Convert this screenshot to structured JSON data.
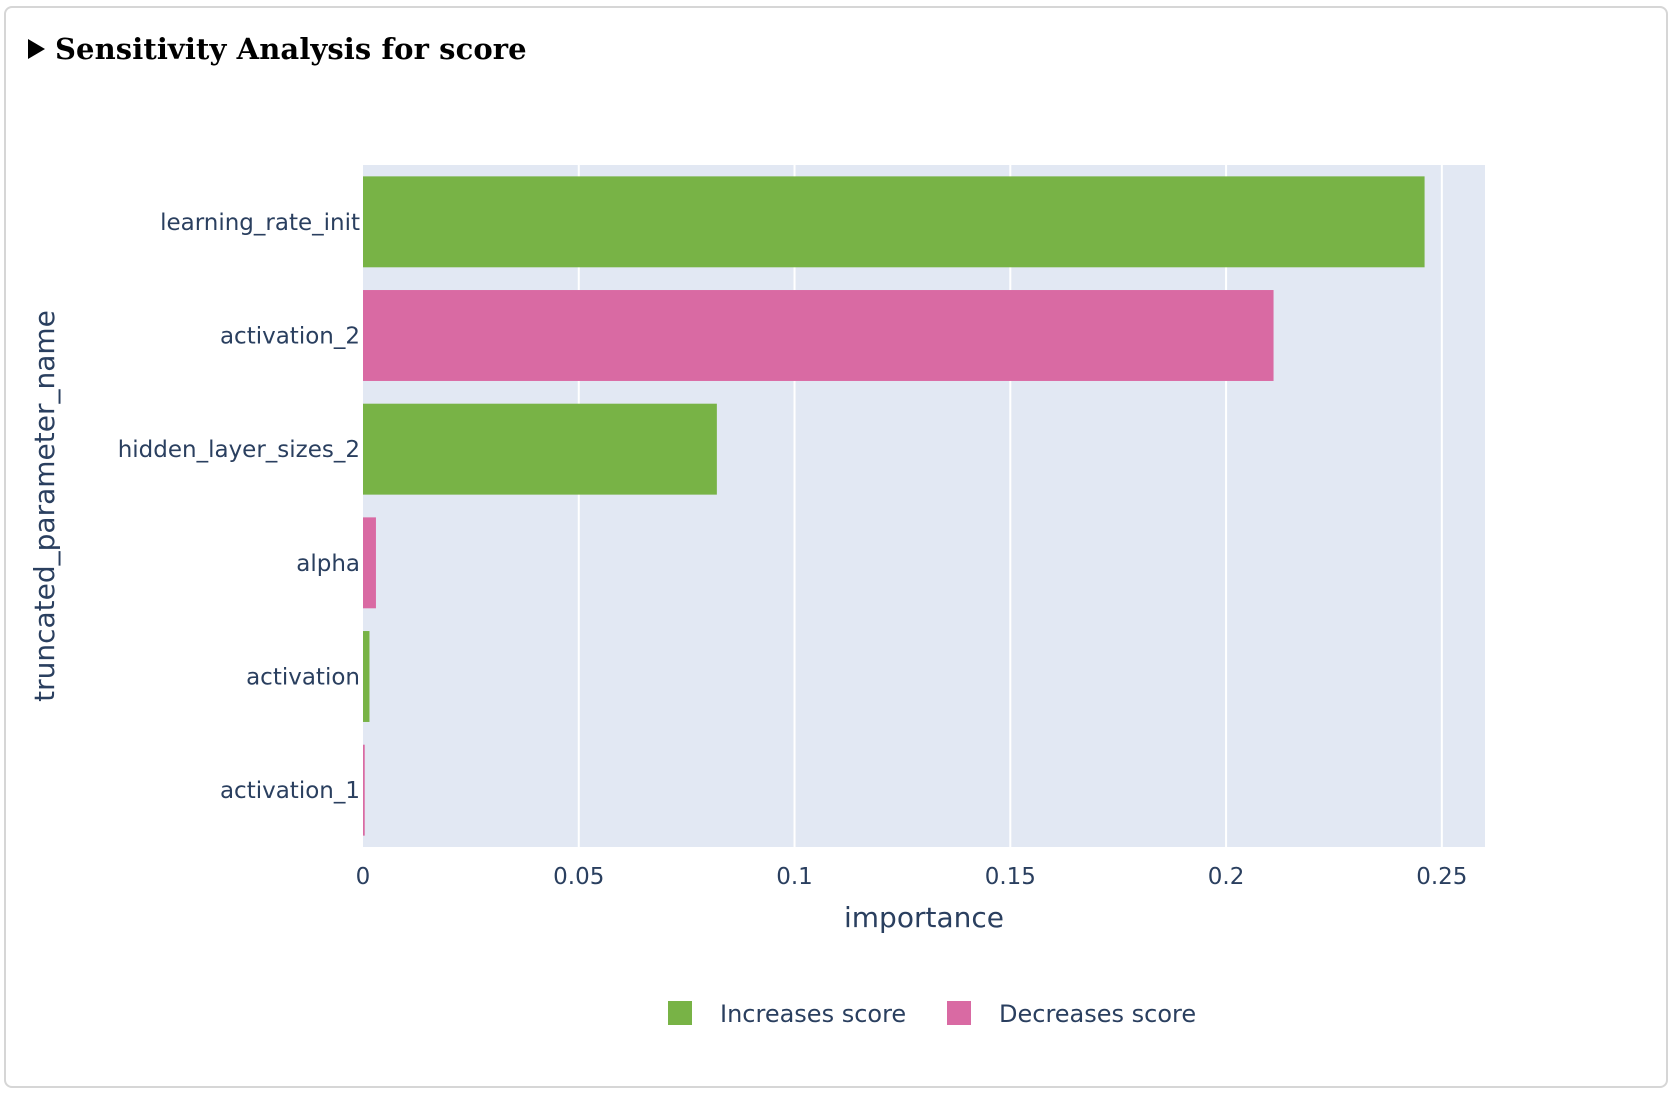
{
  "section": {
    "title": "Sensitivity Analysis for score"
  },
  "colors": {
    "increases": "#78b346",
    "decreases": "#d96aa3",
    "plot_background": "#e2e8f3",
    "grid": "#ffffff",
    "text": "#2a3f5f"
  },
  "chart_data": {
    "type": "bar",
    "orientation": "horizontal",
    "title": "",
    "xlabel": "importance",
    "ylabel": "truncated_parameter_name",
    "xlim": [
      0,
      0.26
    ],
    "x_ticks": [
      0,
      0.05,
      0.1,
      0.15,
      0.2,
      0.25
    ],
    "x_tick_labels": [
      "0",
      "0.05",
      "0.1",
      "0.15",
      "0.2",
      "0.25"
    ],
    "grid": "vertical",
    "legend_position": "bottom-center",
    "categories": [
      "learning_rate_init",
      "activation_2",
      "hidden_layer_sizes_2",
      "alpha",
      "activation",
      "activation_1"
    ],
    "values": [
      0.246,
      0.211,
      0.082,
      0.003,
      0.0015,
      0.0004
    ],
    "effect": [
      "increases",
      "decreases",
      "increases",
      "decreases",
      "increases",
      "decreases"
    ],
    "series": [
      {
        "name": "Increases score",
        "key": "increases",
        "color": "#78b346"
      },
      {
        "name": "Decreases score",
        "key": "decreases",
        "color": "#d96aa3"
      }
    ]
  }
}
